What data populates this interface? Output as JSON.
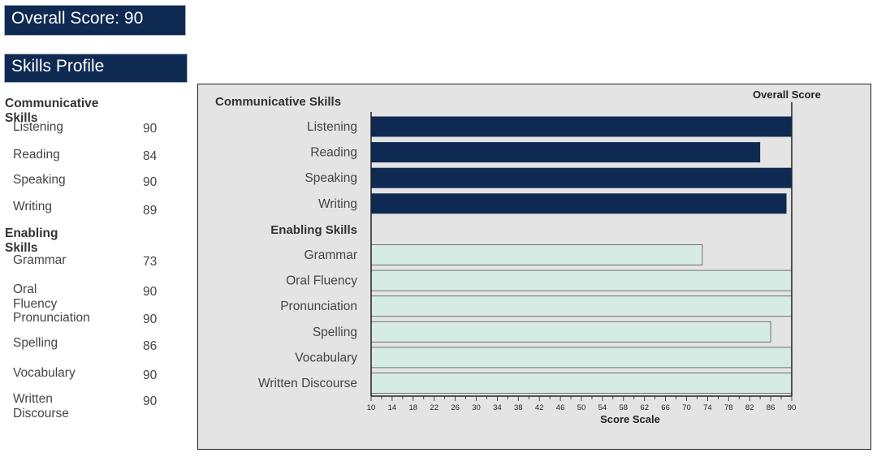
{
  "header": {
    "overall_label": "Overall Score:",
    "overall_value": "90"
  },
  "profile_title": "Skills Profile",
  "sections": [
    {
      "title": "Communicative Skills",
      "items": [
        {
          "label": "Listening",
          "score": 90
        },
        {
          "label": "Reading",
          "score": 84
        },
        {
          "label": "Speaking",
          "score": 90
        },
        {
          "label": "Writing",
          "score": 89
        }
      ]
    },
    {
      "title": "Enabling Skills",
      "items": [
        {
          "label": "Grammar",
          "score": 73
        },
        {
          "label": "Oral Fluency",
          "score": 90
        },
        {
          "label": "Pronunciation",
          "score": 90
        },
        {
          "label": "Spelling",
          "score": 86
        },
        {
          "label": "Vocabulary",
          "score": 90
        },
        {
          "label": "Written Discourse",
          "score": 90
        }
      ]
    }
  ],
  "colors": {
    "communicative": "#0e2a52",
    "enabling": "#d6ebe4",
    "enabling_border": "#555555",
    "banner": "#0e2a52",
    "panel": "#e4e4e4"
  },
  "chart_data": {
    "type": "bar",
    "orientation": "horizontal",
    "title": "",
    "xlabel": "Score Scale",
    "ylabel": "",
    "reference_line_label": "Overall Score",
    "reference_value": 90,
    "xlim": [
      10,
      90
    ],
    "xticks": [
      10,
      14,
      18,
      22,
      26,
      30,
      34,
      38,
      42,
      46,
      50,
      54,
      58,
      62,
      66,
      70,
      74,
      78,
      82,
      86,
      90
    ],
    "groups": [
      {
        "name": "Communicative Skills",
        "categories": [
          "Listening",
          "Reading",
          "Speaking",
          "Writing"
        ],
        "values": [
          90,
          84,
          90,
          89
        ]
      },
      {
        "name": "Enabling Skills",
        "categories": [
          "Grammar",
          "Oral Fluency",
          "Pronunciation",
          "Spelling",
          "Vocabulary",
          "Written Discourse"
        ],
        "values": [
          73,
          90,
          90,
          86,
          90,
          90
        ]
      }
    ],
    "grid": false
  }
}
